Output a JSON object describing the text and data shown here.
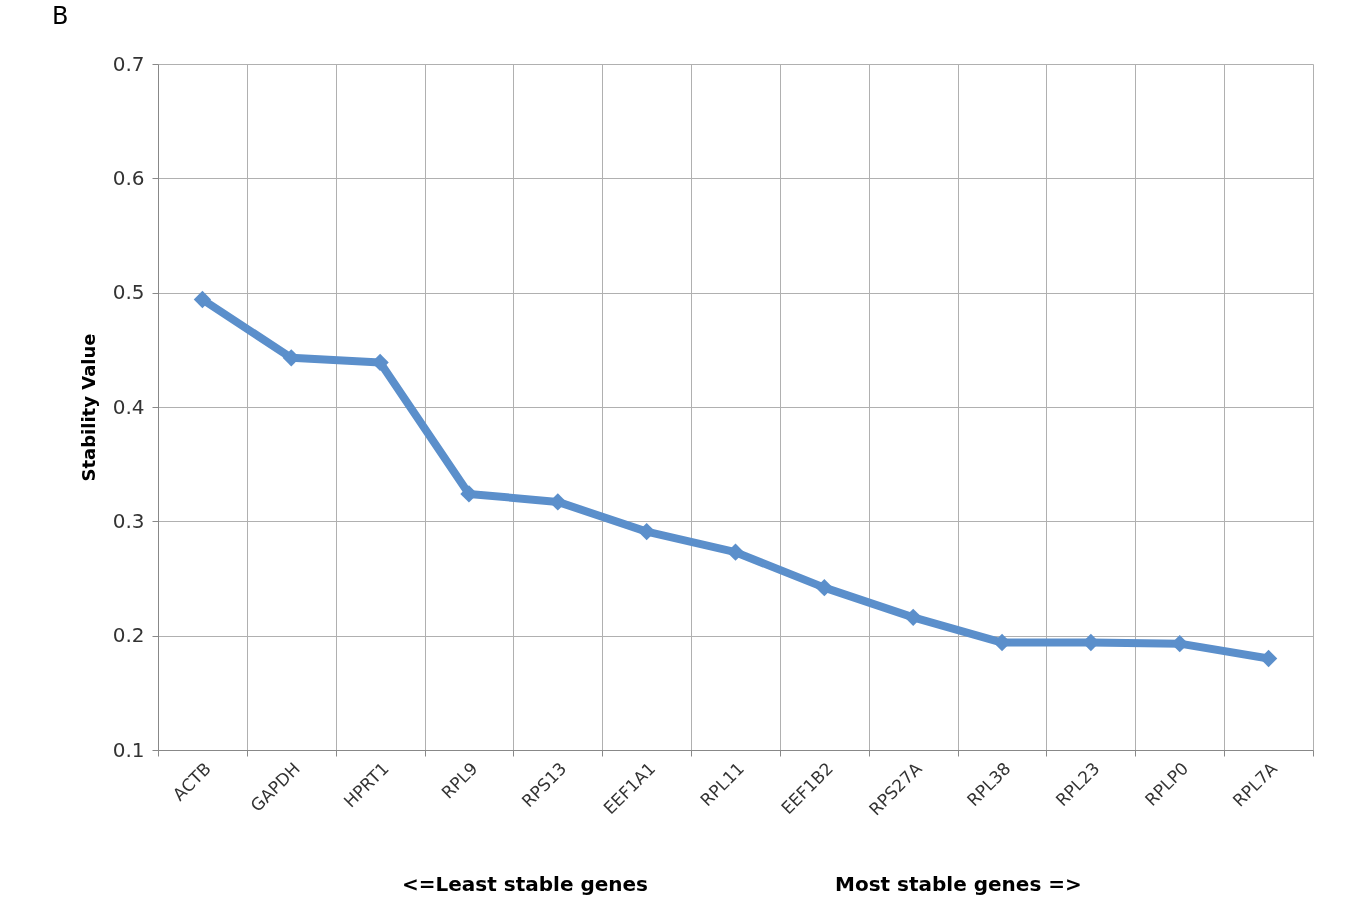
{
  "chart_data": {
    "type": "line",
    "ylabel": "Stability Value",
    "categories": [
      "ACTB",
      "GAPDH",
      "HPRT1",
      "RPL9",
      "RPS13",
      "EEF1A1",
      "RPL11",
      "EEF1B2",
      "RPS27A",
      "RPL38",
      "RPL23",
      "RPLP0",
      "RPL7A"
    ],
    "series": [
      {
        "color": "#5b8fcb",
        "values": [
          0.494,
          0.443,
          0.439,
          0.324,
          0.317,
          0.291,
          0.273,
          0.242,
          0.216,
          0.194,
          0.194,
          0.193,
          0.18
        ]
      }
    ],
    "ylim": [
      0.1,
      0.7
    ],
    "yticks": [
      0.1,
      0.2,
      0.3,
      0.4,
      0.5,
      0.6,
      0.7
    ],
    "grid": true,
    "marker": "diamond",
    "line_style": "solid",
    "annotations": [
      "B",
      "<=Least stable genes",
      "Most stable genes =>"
    ]
  }
}
